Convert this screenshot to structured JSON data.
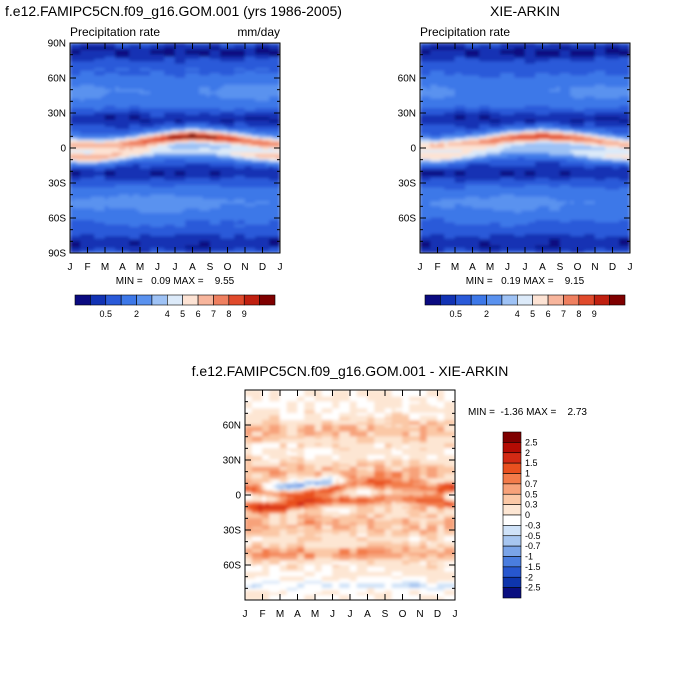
{
  "month_labels": [
    "J",
    "F",
    "M",
    "A",
    "M",
    "J",
    "J",
    "A",
    "S",
    "O",
    "N",
    "D",
    "J"
  ],
  "chart_data": [
    {
      "type": "heatmap",
      "title": "f.e12.FAMIPC5CN.f09_g16.GOM.001 (yrs 1986-2005)",
      "left_label": "Precipitation rate",
      "right_label": "mm/day",
      "stats": "MIN =   0.09 MAX =    9.55",
      "x_ticks": [
        "J",
        "F",
        "M",
        "A",
        "M",
        "J",
        "J",
        "A",
        "S",
        "O",
        "N",
        "D",
        "J"
      ],
      "y_ticks": [
        "90N",
        "60N",
        "30N",
        "0",
        "30S",
        "60S",
        "90S"
      ],
      "ylim": [
        -90,
        90
      ],
      "colorbar_labels": [
        "0.5",
        "2",
        "4",
        "5",
        "6",
        "7",
        "8",
        "9"
      ],
      "colorbar_levels": [
        0.2,
        0.5,
        1,
        2,
        3,
        4,
        5,
        6,
        7,
        8,
        9
      ],
      "itcz": {
        "lat_by_month": [
          3,
          2,
          2,
          3,
          5,
          7,
          9,
          10,
          9,
          8,
          6,
          4,
          3
        ],
        "peak_by_month": [
          7.0,
          6.5,
          6.5,
          7.0,
          7.5,
          8.5,
          9.3,
          9.5,
          9.2,
          8.8,
          8.0,
          7.5,
          7.0
        ]
      },
      "spcz": {
        "lat_by_month": [
          -8,
          -9,
          -8,
          -6,
          -4,
          -3,
          -3,
          -3,
          -3,
          -4,
          -6,
          -7,
          -8
        ],
        "peak_by_month": [
          5.5,
          5.8,
          5.5,
          4.8,
          4.2,
          3.5,
          3.3,
          3.3,
          3.5,
          4.0,
          4.8,
          5.3,
          5.5
        ]
      }
    },
    {
      "type": "heatmap",
      "title": "XIE-ARKIN",
      "left_label": "Precipitation rate",
      "stats": "MIN =   0.19 MAX =    9.15",
      "x_ticks": [
        "J",
        "F",
        "M",
        "A",
        "M",
        "J",
        "J",
        "A",
        "S",
        "O",
        "N",
        "D",
        "J"
      ],
      "y_ticks": [
        "60N",
        "30N",
        "0",
        "30S",
        "60S"
      ],
      "ylim": [
        -90,
        90
      ],
      "colorbar_labels": [
        "0.5",
        "2",
        "4",
        "5",
        "6",
        "7",
        "8",
        "9"
      ],
      "colorbar_levels": [
        0.2,
        0.5,
        1,
        2,
        3,
        4,
        5,
        6,
        7,
        8,
        9
      ],
      "itcz": {
        "lat_by_month": [
          2,
          2,
          3,
          4,
          6,
          8,
          9,
          10,
          9,
          8,
          6,
          4,
          2
        ],
        "peak_by_month": [
          6.5,
          6.3,
          6.5,
          7.0,
          7.5,
          8.3,
          9.0,
          9.1,
          8.8,
          8.3,
          7.5,
          7.0,
          6.5
        ]
      },
      "spcz": {
        "lat_by_month": [
          -8,
          -8,
          -7,
          -5,
          -3,
          -2,
          -2,
          -2,
          -3,
          -4,
          -6,
          -7,
          -8
        ],
        "peak_by_month": [
          4.8,
          5.0,
          4.8,
          4.0,
          3.5,
          3.0,
          2.8,
          2.8,
          3.0,
          3.5,
          4.2,
          4.6,
          4.8
        ]
      }
    },
    {
      "type": "heatmap",
      "title": "f.e12.FAMIPC5CN.f09_g16.GOM.001 - XIE-ARKIN",
      "stats": "MIN =  -1.36 MAX =    2.73",
      "x_ticks": [
        "J",
        "F",
        "M",
        "A",
        "M",
        "J",
        "J",
        "A",
        "S",
        "O",
        "N",
        "D",
        "J"
      ],
      "y_ticks": [
        "60N",
        "30N",
        "0",
        "30S",
        "60S"
      ],
      "ylim": [
        -90,
        90
      ],
      "colorbar_labels": [
        "2.5",
        "2",
        "1.5",
        "1",
        "0.7",
        "0.5",
        "0.3",
        "0",
        "-0.3",
        "-0.5",
        "-0.7",
        "-1",
        "-1.5",
        "-2",
        "-2.5"
      ]
    }
  ],
  "colors": {
    "abs_scale": [
      "#0a0a80",
      "#1233b4",
      "#2a5ad9",
      "#3d78e8",
      "#5a92ef",
      "#9ec2f5",
      "#dceaf9",
      "#fde3d4",
      "#f7b59c",
      "#ef8060",
      "#e04a2c",
      "#c02010",
      "#7f0000"
    ],
    "diff_scale": [
      "#7f0000",
      "#b40c04",
      "#d32a14",
      "#e9501f",
      "#f37b4a",
      "#f7a27a",
      "#fbc8a6",
      "#fde6d3",
      "#ffffff",
      "#cfe2f8",
      "#a7c6f0",
      "#7aa4e8",
      "#4a7ddf",
      "#2757cf",
      "#0e35ac",
      "#0a0f80"
    ]
  }
}
